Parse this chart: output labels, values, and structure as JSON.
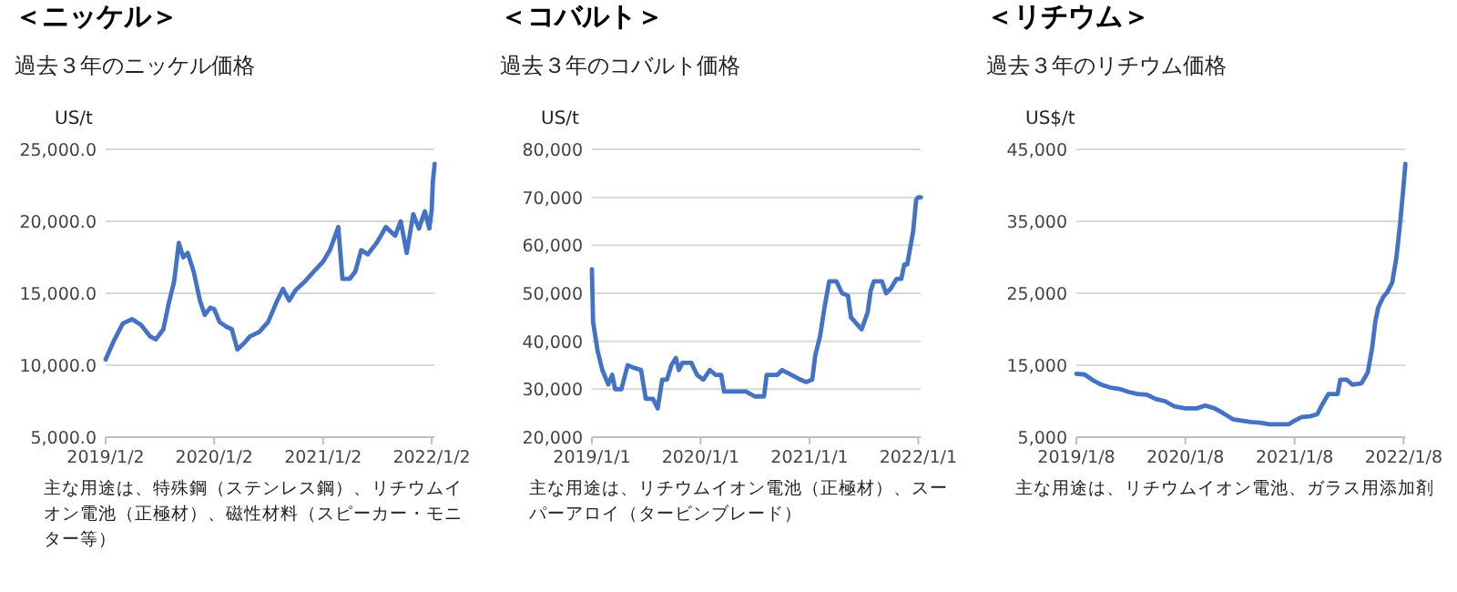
{
  "chart_data": [
    {
      "type": "line",
      "title": "＜ニッケル＞",
      "subtitle": "過去３年のニッケル価格",
      "ylabel": "US/t",
      "grid": "y",
      "xlim": [
        "2019-01-02",
        "2022-01-12"
      ],
      "ylim": [
        5000,
        25000
      ],
      "xticks": [
        {
          "value": "2019-01-02",
          "label": "2019/1/2"
        },
        {
          "value": "2020-01-02",
          "label": "2020/1/2"
        },
        {
          "value": "2021-01-02",
          "label": "2021/1/2"
        },
        {
          "value": "2022-01-02",
          "label": "2022/1/2"
        }
      ],
      "yticks": [
        {
          "value": 5000,
          "label": "5,000.0"
        },
        {
          "value": 10000,
          "label": "10,000.0"
        },
        {
          "value": 15000,
          "label": "15,000.0"
        },
        {
          "value": 20000,
          "label": "20,000.0"
        },
        {
          "value": 25000,
          "label": "25,000.0"
        }
      ],
      "annotations": [
        "主な用途は、特殊鋼（ステンレス鋼）、リチウムイオン電池（正極材）、磁性材料（スピーカー・モニター等）"
      ],
      "series": [
        {
          "color": "#4472c4",
          "x": [
            "2019-01-02",
            "2019-02-01",
            "2019-03-01",
            "2019-04-01",
            "2019-05-01",
            "2019-06-01",
            "2019-06-20",
            "2019-07-15",
            "2019-08-01",
            "2019-08-20",
            "2019-09-05",
            "2019-09-20",
            "2019-10-05",
            "2019-10-25",
            "2019-11-15",
            "2019-12-01",
            "2019-12-20",
            "2020-01-02",
            "2020-01-20",
            "2020-02-10",
            "2020-03-01",
            "2020-03-20",
            "2020-04-10",
            "2020-05-01",
            "2020-06-01",
            "2020-07-01",
            "2020-08-01",
            "2020-08-20",
            "2020-09-10",
            "2020-10-01",
            "2020-11-01",
            "2020-12-01",
            "2021-01-02",
            "2021-01-25",
            "2021-02-22",
            "2021-03-08",
            "2021-04-01",
            "2021-04-20",
            "2021-05-10",
            "2021-06-01",
            "2021-07-01",
            "2021-08-01",
            "2021-09-01",
            "2021-09-20",
            "2021-10-10",
            "2021-11-01",
            "2021-11-20",
            "2021-12-10",
            "2021-12-25",
            "2022-01-02",
            "2022-01-06",
            "2022-01-12"
          ],
          "values": [
            10400,
            11800,
            12900,
            13200,
            12800,
            12000,
            11800,
            12500,
            14200,
            15800,
            18500,
            17500,
            17800,
            16500,
            14500,
            13500,
            14000,
            13900,
            13000,
            12700,
            12500,
            11100,
            11500,
            12000,
            12300,
            13000,
            14500,
            15300,
            14500,
            15200,
            15800,
            16500,
            17200,
            18000,
            19600,
            16000,
            16000,
            16500,
            18000,
            17700,
            18500,
            19600,
            19000,
            20000,
            17800,
            20500,
            19500,
            20700,
            19500,
            20800,
            22800,
            24000
          ]
        }
      ]
    },
    {
      "type": "line",
      "title": "＜コバルト＞",
      "subtitle": "過去３年のコバルト価格",
      "ylabel": "US/t",
      "grid": "y",
      "xlim": [
        "2019-01-01",
        "2022-01-10"
      ],
      "ylim": [
        20000,
        80000
      ],
      "xticks": [
        {
          "value": "2019-01-01",
          "label": "2019/1/1"
        },
        {
          "value": "2020-01-01",
          "label": "2020/1/1"
        },
        {
          "value": "2021-01-01",
          "label": "2021/1/1"
        },
        {
          "value": "2022-01-01",
          "label": "2022/1/1"
        }
      ],
      "yticks": [
        {
          "value": 20000,
          "label": "20,000"
        },
        {
          "value": 30000,
          "label": "30,000"
        },
        {
          "value": 40000,
          "label": "40,000"
        },
        {
          "value": 50000,
          "label": "50,000"
        },
        {
          "value": 60000,
          "label": "60,000"
        },
        {
          "value": 70000,
          "label": "70,000"
        },
        {
          "value": 80000,
          "label": "80,000"
        }
      ],
      "annotations": [
        "主な用途は、リチウムイオン電池（正極材）、スーパーアロイ（タービンブレード）"
      ],
      "series": [
        {
          "color": "#4472c4",
          "x": [
            "2019-01-01",
            "2019-01-05",
            "2019-01-20",
            "2019-02-05",
            "2019-02-25",
            "2019-03-10",
            "2019-03-20",
            "2019-04-10",
            "2019-05-01",
            "2019-05-20",
            "2019-06-15",
            "2019-07-01",
            "2019-07-25",
            "2019-08-10",
            "2019-08-25",
            "2019-09-10",
            "2019-09-25",
            "2019-10-10",
            "2019-10-20",
            "2019-11-01",
            "2019-12-01",
            "2019-12-20",
            "2020-01-10",
            "2020-02-01",
            "2020-02-20",
            "2020-03-10",
            "2020-03-20",
            "2020-05-01",
            "2020-06-01",
            "2020-07-01",
            "2020-08-01",
            "2020-08-10",
            "2020-09-15",
            "2020-10-01",
            "2020-11-01",
            "2020-12-01",
            "2020-12-20",
            "2021-01-10",
            "2021-01-20",
            "2021-02-05",
            "2021-02-20",
            "2021-03-08",
            "2021-04-01",
            "2021-04-20",
            "2021-05-10",
            "2021-05-20",
            "2021-06-10",
            "2021-06-25",
            "2021-07-15",
            "2021-07-25",
            "2021-08-05",
            "2021-09-01",
            "2021-09-15",
            "2021-10-01",
            "2021-10-20",
            "2021-11-05",
            "2021-11-15",
            "2021-11-25",
            "2021-12-05",
            "2021-12-15",
            "2021-12-25",
            "2022-01-01",
            "2022-01-10"
          ],
          "values": [
            55000,
            44000,
            38000,
            34000,
            31000,
            33000,
            30000,
            30000,
            35000,
            34500,
            34000,
            28000,
            28000,
            26000,
            32000,
            32000,
            35000,
            36500,
            34000,
            35500,
            35500,
            33000,
            32000,
            34000,
            33000,
            33000,
            29500,
            29500,
            29500,
            28500,
            28500,
            33000,
            33000,
            34000,
            33000,
            32000,
            31500,
            32000,
            37000,
            41000,
            47000,
            52500,
            52500,
            50000,
            49500,
            45000,
            43500,
            42500,
            46000,
            50500,
            52500,
            52500,
            50000,
            51000,
            53000,
            53000,
            56000,
            56000,
            59500,
            63000,
            69500,
            70000,
            70000
          ]
        }
      ]
    },
    {
      "type": "line",
      "title": "＜リチウム＞",
      "subtitle": "過去３年のリチウム価格",
      "ylabel": "US$/t",
      "grid": "y",
      "xlim": [
        "2019-01-08",
        "2022-01-14"
      ],
      "ylim": [
        5000,
        45000
      ],
      "xticks": [
        {
          "value": "2019-01-08",
          "label": "2019/1/8"
        },
        {
          "value": "2020-01-08",
          "label": "2020/1/8"
        },
        {
          "value": "2021-01-08",
          "label": "2021/1/8"
        },
        {
          "value": "2022-01-08",
          "label": "2022/1/8"
        }
      ],
      "yticks": [
        {
          "value": 5000,
          "label": "5,000"
        },
        {
          "value": 15000,
          "label": "15,000"
        },
        {
          "value": 25000,
          "label": "25,000"
        },
        {
          "value": 35000,
          "label": "35,000"
        },
        {
          "value": 45000,
          "label": "45,000"
        }
      ],
      "annotations": [
        "主な用途は、リチウムイオン電池、ガラス用添加剤"
      ],
      "series": [
        {
          "color": "#4472c4",
          "x": [
            "2019-01-08",
            "2019-02-05",
            "2019-03-01",
            "2019-04-01",
            "2019-05-01",
            "2019-06-01",
            "2019-07-01",
            "2019-08-01",
            "2019-09-01",
            "2019-10-01",
            "2019-11-01",
            "2019-12-01",
            "2020-01-08",
            "2020-02-15",
            "2020-03-15",
            "2020-04-15",
            "2020-05-15",
            "2020-06-15",
            "2020-07-15",
            "2020-08-15",
            "2020-09-15",
            "2020-10-15",
            "2020-11-15",
            "2020-12-20",
            "2021-01-08",
            "2021-02-01",
            "2021-03-01",
            "2021-03-25",
            "2021-04-10",
            "2021-05-01",
            "2021-06-01",
            "2021-06-10",
            "2021-07-01",
            "2021-07-20",
            "2021-08-20",
            "2021-09-10",
            "2021-09-25",
            "2021-10-05",
            "2021-10-15",
            "2021-11-01",
            "2021-11-15",
            "2021-12-01",
            "2021-12-15",
            "2021-12-28",
            "2022-01-08",
            "2022-01-14"
          ],
          "values": [
            13800,
            13700,
            13000,
            12300,
            11900,
            11700,
            11300,
            11000,
            10900,
            10300,
            10000,
            9300,
            9000,
            9000,
            9400,
            9000,
            8300,
            7500,
            7300,
            7100,
            7000,
            6800,
            6800,
            6800,
            7300,
            7800,
            7900,
            8200,
            9500,
            11000,
            11000,
            13000,
            13000,
            12300,
            12500,
            14000,
            17500,
            21000,
            23000,
            24500,
            25200,
            26500,
            30000,
            35000,
            40000,
            43000
          ]
        }
      ]
    }
  ]
}
